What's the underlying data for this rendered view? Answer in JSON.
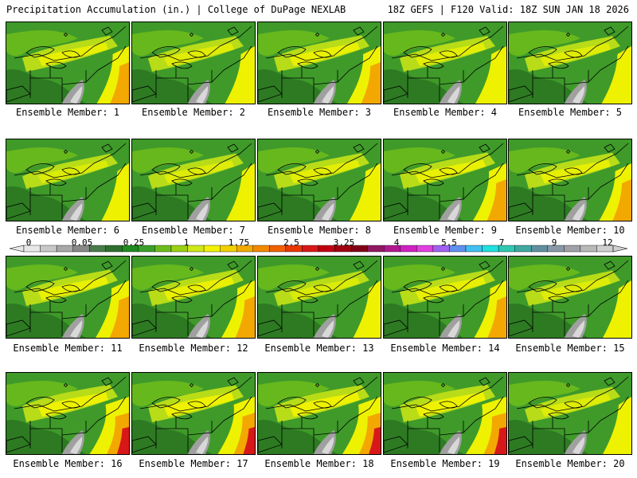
{
  "header": {
    "title_left": "Precipitation Accumulation (in.) | College of DuPage NEXLAB",
    "title_right": "18Z GEFS | F120 Valid: 18Z SUN JAN 18 2026"
  },
  "members": [
    {
      "label": "Ensemble Member: 1",
      "wet": 0.55
    },
    {
      "label": "Ensemble Member: 2",
      "wet": 0.45
    },
    {
      "label": "Ensemble Member: 3",
      "wet": 0.6
    },
    {
      "label": "Ensemble Member: 4",
      "wet": 0.5
    },
    {
      "label": "Ensemble Member: 5",
      "wet": 0.45
    },
    {
      "label": "Ensemble Member: 6",
      "wet": 0.35
    },
    {
      "label": "Ensemble Member: 7",
      "wet": 0.4
    },
    {
      "label": "Ensemble Member: 8",
      "wet": 0.5
    },
    {
      "label": "Ensemble Member: 9",
      "wet": 0.6
    },
    {
      "label": "Ensemble Member: 10",
      "wet": 0.55
    },
    {
      "label": "Ensemble Member: 11",
      "wet": 0.6
    },
    {
      "label": "Ensemble Member: 12",
      "wet": 0.6
    },
    {
      "label": "Ensemble Member: 13",
      "wet": 0.35
    },
    {
      "label": "Ensemble Member: 14",
      "wet": 0.55
    },
    {
      "label": "Ensemble Member: 15",
      "wet": 0.4
    },
    {
      "label": "Ensemble Member: 16",
      "wet": 0.85
    },
    {
      "label": "Ensemble Member: 17",
      "wet": 0.75
    },
    {
      "label": "Ensemble Member: 18",
      "wet": 0.8
    },
    {
      "label": "Ensemble Member: 19",
      "wet": 0.9
    },
    {
      "label": "Ensemble Member: 20",
      "wet": 0.4
    }
  ],
  "colorbar": {
    "ticks": [
      "0",
      "0.05",
      "0.25",
      "1",
      "1.75",
      "2.5",
      "3.25",
      "4",
      "5.5",
      "7",
      "9",
      "12"
    ],
    "colors": [
      "#e8e8e8",
      "#c8c8c8",
      "#a8a8a8",
      "#888888",
      "#4a7a4a",
      "#2e6e2e",
      "#1f8c1f",
      "#3aa02a",
      "#6cbb1c",
      "#9cd014",
      "#d0e818",
      "#f2f200",
      "#f2d000",
      "#f2aa00",
      "#f28800",
      "#f06000",
      "#e83800",
      "#d81818",
      "#c00010",
      "#a00010",
      "#800018",
      "#901860",
      "#b01890",
      "#d020c0",
      "#e040e0",
      "#a060f0",
      "#6090f0",
      "#40c0f0",
      "#20e0e0",
      "#30c8b0",
      "#40a8a0",
      "#6090a0",
      "#8898a8",
      "#a0a0a8",
      "#b8b8b8",
      "#d0d0d0"
    ],
    "panel_palette": {
      "dark_green": "#2d7a22",
      "green": "#3f9a2a",
      "light_green": "#6cbb1c",
      "yellow_green": "#b8dc18",
      "yellow": "#eef200",
      "orange": "#f2a800",
      "red": "#d81818",
      "gray": "#a0a0a0",
      "light_gray": "#d8d8d8"
    }
  }
}
